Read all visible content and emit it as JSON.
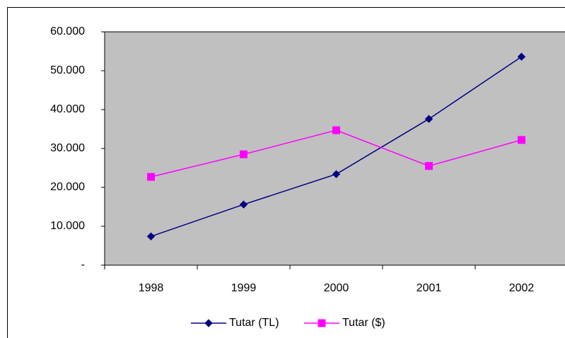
{
  "chart_data": {
    "type": "line",
    "categories": [
      "1998",
      "1999",
      "2000",
      "2001",
      "2002"
    ],
    "series": [
      {
        "name": "Tutar (TL)",
        "color": "#000080",
        "marker": "diamond",
        "values": [
          7400,
          15600,
          23400,
          37600,
          53600
        ]
      },
      {
        "name": "Tutar ($)",
        "color": "#ff00ff",
        "marker": "square",
        "values": [
          22700,
          28500,
          34700,
          25500,
          32200
        ]
      }
    ],
    "ylim": [
      0,
      60000
    ],
    "yticks": [
      {
        "value": 0,
        "label": "-"
      },
      {
        "value": 10000,
        "label": "10.000"
      },
      {
        "value": 20000,
        "label": "20.000"
      },
      {
        "value": 30000,
        "label": "30.000"
      },
      {
        "value": 40000,
        "label": "40.000"
      },
      {
        "value": 50000,
        "label": "50.000"
      },
      {
        "value": 60000,
        "label": "60.000"
      }
    ],
    "grid": false,
    "legend": "bottom",
    "plot_background": "#c0c0c0"
  }
}
